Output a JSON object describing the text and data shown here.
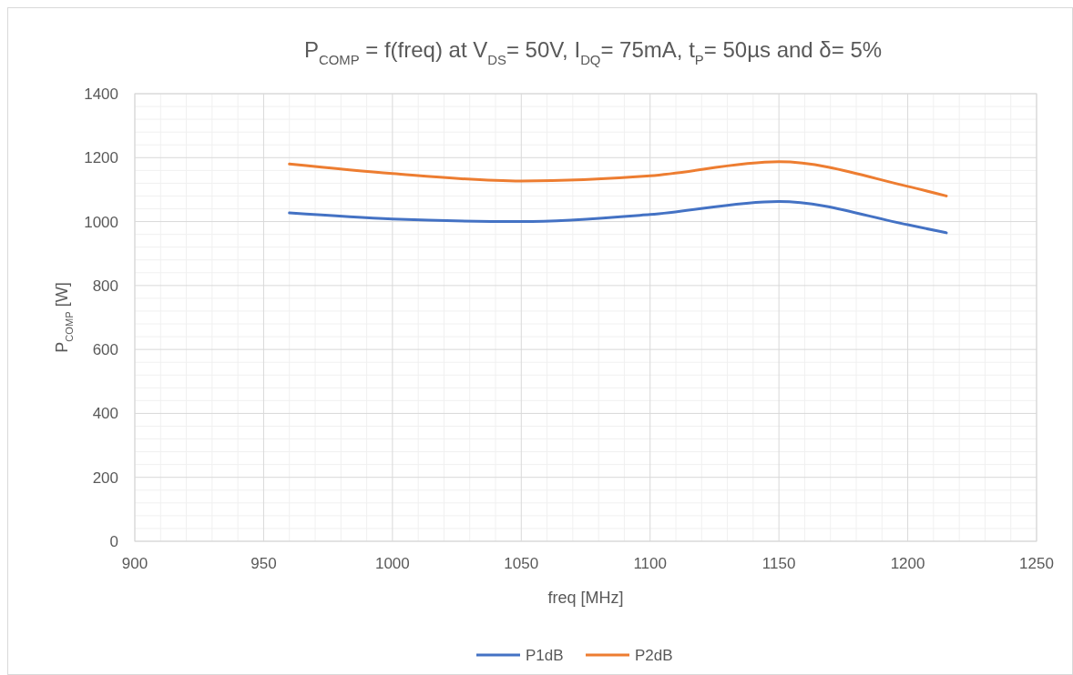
{
  "chart_data": {
    "type": "line",
    "title": "P$_{COMP}$ = f(freq) at V$_{DS}$= 50V, I$_{DQ}$= 75mA,  t$_{P}$= 50µs and δ= 5%",
    "xlabel": "freq  [MHz]",
    "ylabel": "P$_{COMP}$  [W]",
    "x": [
      960,
      1000,
      1050,
      1100,
      1150,
      1200,
      1215
    ],
    "series": [
      {
        "name": "P1dB",
        "color": "#4472c4",
        "values": [
          1027,
          1008,
          1000,
          1022,
          1063,
          990,
          965
        ]
      },
      {
        "name": "P2dB",
        "color": "#ed7d31",
        "values": [
          1180,
          1150,
          1127,
          1143,
          1187,
          1110,
          1080
        ]
      }
    ],
    "xlim": [
      900,
      1250
    ],
    "xticks": [
      900,
      950,
      1000,
      1050,
      1100,
      1150,
      1200,
      1250
    ],
    "ylim": [
      0,
      1400
    ],
    "yticks": [
      0,
      200,
      400,
      600,
      800,
      1000,
      1200,
      1400
    ],
    "grid": true,
    "legend": "bottom",
    "marker": "none",
    "line_style": "solid"
  }
}
